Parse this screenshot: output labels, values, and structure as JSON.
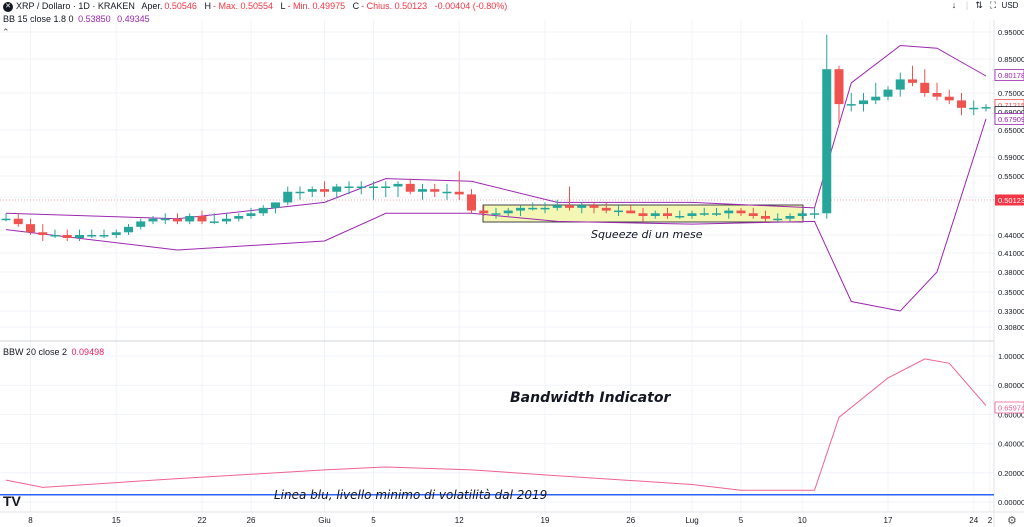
{
  "header": {
    "symbol": "XRP / Dollaro · 1D · KRAKEN",
    "open_label": "Aper.",
    "open": "0.50546",
    "high_label": "H",
    "high": "- Max. 0.50554",
    "low_label": "L",
    "low": "- Min. 0.49975",
    "close_label": "C",
    "close": "- Chius. 0.50123",
    "change": "-0.00404 (-0.80%)",
    "bb_label": "BB 15 close 1.8 0",
    "bb_upper": "0.53850",
    "bb_lower": "0.49345",
    "bbw_label": "BBW 20 close 2",
    "bbw_value": "0.09498",
    "currency": "USD"
  },
  "toolbar": {
    "arrow_down": "↓",
    "sep": "|",
    "lock": "⇅",
    "maximize": "⛶"
  },
  "price_axis": {
    "ticks": [
      "0.95000",
      "0.85000",
      "0.75000",
      "0.65000",
      "0.59000",
      "0.55000",
      "0.51000",
      "0.44000",
      "0.41000",
      "0.38000",
      "0.35000",
      "0.33000",
      "0.30800"
    ],
    "badge_upper": "0.80178",
    "badge_close": "0.71215",
    "badge_mid": "0.69000",
    "badge_lower": "0.67909",
    "badge_last": "0.50123"
  },
  "bbw_axis": {
    "ticks": [
      "1.00000",
      "0.80000",
      "0.60000",
      "0.40000",
      "0.20000",
      "0.00000"
    ],
    "badge": "0.65974"
  },
  "time_axis": {
    "labels": [
      "8",
      "15",
      "22",
      "26",
      "Giu",
      "5",
      "12",
      "19",
      "26",
      "Lug",
      "5",
      "10",
      "17",
      "24",
      "2"
    ]
  },
  "annotations": {
    "squeeze": "Squeeze di un mese",
    "bandwidth": "Bandwidth Indicator",
    "blue_line": "Linea blu, livello minimo di volatilità dal 2019"
  },
  "logo": "TV",
  "colors": {
    "up": "#26a69a",
    "down": "#ef5350",
    "bands": "#9c27b0",
    "bbw": "#f06292",
    "blue": "#2962ff"
  },
  "chart_data": [
    {
      "type": "candlestick",
      "title": "XRP / Dollaro · 1D · KRAKEN",
      "x": [
        "May 6",
        "May 7",
        "May 8",
        "May 9",
        "May 10",
        "May 11",
        "May 12",
        "May 13",
        "May 14",
        "May 15",
        "May 16",
        "May 17",
        "May 18",
        "May 19",
        "May 20",
        "May 21",
        "May 22",
        "May 23",
        "May 24",
        "May 25",
        "May 26",
        "May 27",
        "May 28",
        "May 29",
        "May 30",
        "May 31",
        "Jun 1",
        "Jun 2",
        "Jun 3",
        "Jun 4",
        "Jun 5",
        "Jun 6",
        "Jun 7",
        "Jun 8",
        "Jun 9",
        "Jun 10",
        "Jun 11",
        "Jun 12",
        "Jun 13",
        "Jun 14",
        "Jun 15",
        "Jun 16",
        "Jun 17",
        "Jun 18",
        "Jun 19",
        "Jun 20",
        "Jun 21",
        "Jun 22",
        "Jun 23",
        "Jun 24",
        "Jun 25",
        "Jun 26",
        "Jun 27",
        "Jun 28",
        "Jun 29",
        "Jun 30",
        "Jul 1",
        "Jul 2",
        "Jul 3",
        "Jul 4",
        "Jul 5",
        "Jul 6",
        "Jul 7",
        "Jul 8",
        "Jul 9",
        "Jul 10",
        "Jul 11",
        "Jul 12",
        "Jul 13",
        "Jul 14",
        "Jul 15",
        "Jul 16",
        "Jul 17",
        "Jul 18",
        "Jul 19",
        "Jul 20",
        "Jul 21",
        "Jul 22",
        "Jul 23",
        "Jul 24",
        "Jul 25"
      ],
      "open": [
        0.47,
        0.47,
        0.46,
        0.445,
        0.44,
        0.44,
        0.435,
        0.44,
        0.44,
        0.44,
        0.445,
        0.455,
        0.465,
        0.47,
        0.47,
        0.465,
        0.475,
        0.465,
        0.465,
        0.47,
        0.475,
        0.48,
        0.49,
        0.5,
        0.52,
        0.52,
        0.525,
        0.52,
        0.53,
        0.53,
        0.53,
        0.53,
        0.53,
        0.535,
        0.52,
        0.525,
        0.52,
        0.52,
        0.515,
        0.485,
        0.48,
        0.48,
        0.485,
        0.49,
        0.49,
        0.49,
        0.495,
        0.49,
        0.495,
        0.49,
        0.485,
        0.485,
        0.48,
        0.475,
        0.48,
        0.475,
        0.475,
        0.48,
        0.48,
        0.48,
        0.485,
        0.48,
        0.475,
        0.47,
        0.47,
        0.475,
        0.48,
        0.48,
        0.82,
        0.72,
        0.72,
        0.73,
        0.74,
        0.76,
        0.79,
        0.78,
        0.75,
        0.74,
        0.73,
        0.71,
        0.71
      ],
      "high": [
        0.48,
        0.48,
        0.47,
        0.46,
        0.45,
        0.45,
        0.45,
        0.45,
        0.45,
        0.45,
        0.46,
        0.47,
        0.475,
        0.48,
        0.48,
        0.48,
        0.485,
        0.48,
        0.48,
        0.48,
        0.49,
        0.495,
        0.5,
        0.53,
        0.53,
        0.53,
        0.54,
        0.535,
        0.54,
        0.54,
        0.54,
        0.54,
        0.54,
        0.545,
        0.535,
        0.535,
        0.535,
        0.56,
        0.525,
        0.495,
        0.49,
        0.49,
        0.495,
        0.5,
        0.5,
        0.505,
        0.53,
        0.5,
        0.5,
        0.5,
        0.495,
        0.495,
        0.49,
        0.485,
        0.49,
        0.485,
        0.485,
        0.49,
        0.49,
        0.49,
        0.49,
        0.49,
        0.485,
        0.48,
        0.48,
        0.485,
        0.49,
        0.94,
        0.83,
        0.75,
        0.75,
        0.78,
        0.77,
        0.81,
        0.83,
        0.82,
        0.78,
        0.76,
        0.75,
        0.73,
        0.72
      ],
      "low": [
        0.465,
        0.455,
        0.44,
        0.43,
        0.435,
        0.43,
        0.43,
        0.435,
        0.435,
        0.435,
        0.44,
        0.45,
        0.46,
        0.46,
        0.46,
        0.46,
        0.46,
        0.46,
        0.46,
        0.465,
        0.47,
        0.475,
        0.48,
        0.495,
        0.505,
        0.51,
        0.51,
        0.51,
        0.515,
        0.515,
        0.505,
        0.51,
        0.51,
        0.515,
        0.505,
        0.51,
        0.505,
        0.505,
        0.48,
        0.475,
        0.47,
        0.475,
        0.475,
        0.485,
        0.48,
        0.485,
        0.485,
        0.48,
        0.48,
        0.48,
        0.475,
        0.48,
        0.465,
        0.47,
        0.47,
        0.47,
        0.47,
        0.475,
        0.475,
        0.47,
        0.475,
        0.47,
        0.465,
        0.465,
        0.465,
        0.47,
        0.47,
        0.47,
        0.67,
        0.7,
        0.7,
        0.72,
        0.73,
        0.74,
        0.77,
        0.74,
        0.73,
        0.72,
        0.69,
        0.69,
        0.7
      ],
      "close": [
        0.47,
        0.46,
        0.445,
        0.44,
        0.44,
        0.435,
        0.44,
        0.44,
        0.44,
        0.445,
        0.455,
        0.465,
        0.47,
        0.47,
        0.465,
        0.475,
        0.465,
        0.465,
        0.47,
        0.475,
        0.48,
        0.49,
        0.5,
        0.52,
        0.52,
        0.525,
        0.52,
        0.53,
        0.53,
        0.53,
        0.53,
        0.53,
        0.535,
        0.52,
        0.525,
        0.52,
        0.52,
        0.515,
        0.485,
        0.48,
        0.48,
        0.485,
        0.49,
        0.49,
        0.49,
        0.495,
        0.49,
        0.495,
        0.49,
        0.485,
        0.485,
        0.48,
        0.475,
        0.48,
        0.475,
        0.475,
        0.48,
        0.48,
        0.48,
        0.485,
        0.48,
        0.475,
        0.47,
        0.47,
        0.475,
        0.48,
        0.48,
        0.82,
        0.72,
        0.72,
        0.73,
        0.74,
        0.76,
        0.79,
        0.78,
        0.75,
        0.74,
        0.73,
        0.71,
        0.71,
        0.712
      ]
    },
    {
      "type": "line",
      "name": "BB 15 close 1.8 0",
      "x": [
        "May 6",
        "May 20",
        "Jun 1",
        "Jun 6",
        "Jun 13",
        "Jun 20",
        "Jul 1",
        "Jul 11",
        "Jul 14",
        "Jul 18",
        "Jul 21",
        "Jul 25"
      ],
      "upper": [
        0.48,
        0.47,
        0.5,
        0.545,
        0.54,
        0.5,
        0.5,
        0.49,
        0.78,
        0.9,
        0.89,
        0.8
      ],
      "lower": [
        0.45,
        0.415,
        0.43,
        0.48,
        0.48,
        0.465,
        0.46,
        0.465,
        0.34,
        0.33,
        0.38,
        0.68
      ]
    },
    {
      "type": "line",
      "name": "BBW 20 close 2",
      "x": [
        "May 6",
        "May 9",
        "May 20",
        "Jun 1",
        "Jun 6",
        "Jun 13",
        "Jun 20",
        "Jul 1",
        "Jul 5",
        "Jul 11",
        "Jul 13",
        "Jul 17",
        "Jul 20",
        "Jul 22",
        "Jul 25"
      ],
      "values": [
        0.15,
        0.1,
        0.16,
        0.22,
        0.24,
        0.22,
        0.18,
        0.12,
        0.08,
        0.08,
        0.58,
        0.85,
        0.98,
        0.95,
        0.66
      ],
      "blue_line": 0.05,
      "ylim": [
        0,
        1.0
      ]
    }
  ]
}
